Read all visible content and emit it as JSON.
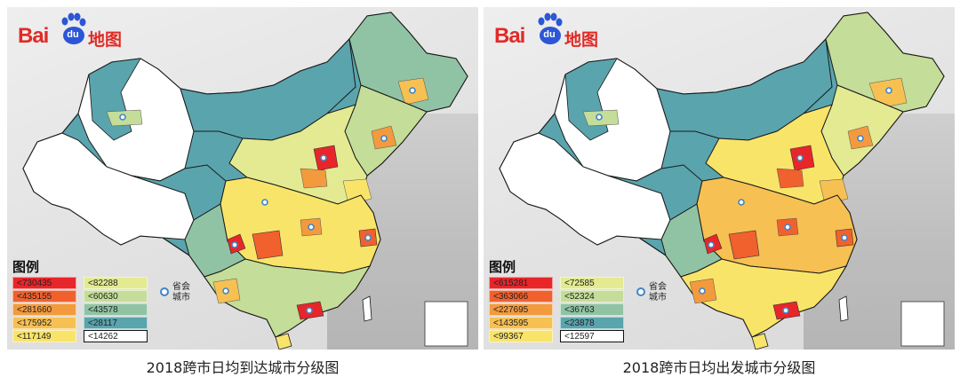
{
  "maps": [
    {
      "logo": {
        "brand_latin": "Bai",
        "brand_du": "du",
        "brand_cn": "地图"
      },
      "legend": {
        "title": "图例",
        "items": [
          {
            "label": "<730435",
            "color": "#e8262a"
          },
          {
            "label": "<435155",
            "color": "#f0612e"
          },
          {
            "label": "<281660",
            "color": "#f39a3e"
          },
          {
            "label": "<175952",
            "color": "#f7c052"
          },
          {
            "label": "<117149",
            "color": "#f9e46a"
          },
          {
            "label": "<82288",
            "color": "#e3ea92"
          },
          {
            "label": "<60630",
            "color": "#c4dd98"
          },
          {
            "label": "<43578",
            "color": "#8fc3a4"
          },
          {
            "label": "<28117",
            "color": "#5aa4ad"
          },
          {
            "label": "<14262",
            "color": "#ffffff"
          }
        ],
        "city_label": "省会城市"
      },
      "caption": "2018跨市日均到达城市分级图"
    },
    {
      "logo": {
        "brand_latin": "Bai",
        "brand_du": "du",
        "brand_cn": "地图"
      },
      "legend": {
        "title": "图例",
        "items": [
          {
            "label": "<615281",
            "color": "#e8262a"
          },
          {
            "label": "<363066",
            "color": "#f0612e"
          },
          {
            "label": "<227695",
            "color": "#f39a3e"
          },
          {
            "label": "<143595",
            "color": "#f7c052"
          },
          {
            "label": "<99367",
            "color": "#f9e46a"
          },
          {
            "label": "<72585",
            "color": "#e3ea92"
          },
          {
            "label": "<52324",
            "color": "#c4dd98"
          },
          {
            "label": "<36763",
            "color": "#8fc3a4"
          },
          {
            "label": "<23878",
            "color": "#5aa4ad"
          },
          {
            "label": "<12597",
            "color": "#ffffff"
          }
        ],
        "city_label": "省会城市"
      },
      "caption": "2018跨市日均出发城市分级图"
    }
  ]
}
